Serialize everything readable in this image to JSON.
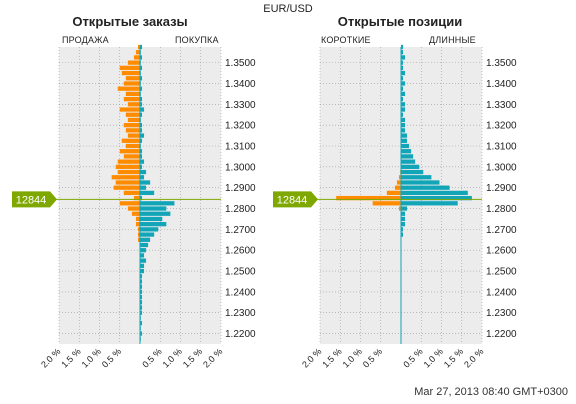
{
  "pair": "EUR/USD",
  "timestamp": "Mar 27, 2013 08:40 GMT+0300",
  "colors": {
    "orange": "#ff8c00",
    "teal": "#12a5b8",
    "price_line": "#7ea700",
    "grid_bg": "#ececec",
    "grid_line": "#9a9a9a"
  },
  "chart_data": [
    {
      "type": "bar",
      "title": "Открытые заказы",
      "left_label": "ПРОДАЖА",
      "right_label": "ПОКУПКА",
      "current_price": 1.2844,
      "current_price_label": "12844",
      "ylim": [
        1.215,
        1.3575
      ],
      "xlim_percent": [
        -2.0,
        2.0
      ],
      "yticks": [
        "1.3500",
        "1.3400",
        "1.3300",
        "1.3200",
        "1.3100",
        "1.3000",
        "1.2900",
        "1.2800",
        "1.2700",
        "1.2600",
        "1.2500",
        "1.2400",
        "1.2300",
        "1.2200"
      ],
      "xticks": [
        "2.0 %",
        "1.5 %",
        "1.0 %",
        "0.5 %",
        "0.5 %",
        "1.0 %",
        "1.5 %",
        "2.0 %"
      ],
      "bucket_size": 0.0025,
      "price_levels": [
        1.3575,
        1.355,
        1.3525,
        1.35,
        1.3475,
        1.345,
        1.3425,
        1.34,
        1.3375,
        1.335,
        1.3325,
        1.33,
        1.3275,
        1.325,
        1.3225,
        1.32,
        1.3175,
        1.315,
        1.3125,
        1.31,
        1.3075,
        1.305,
        1.3025,
        1.3,
        1.2975,
        1.295,
        1.2925,
        1.29,
        1.2875,
        1.285,
        1.2825,
        1.28,
        1.2775,
        1.275,
        1.2725,
        1.27,
        1.2675,
        1.265,
        1.2625,
        1.26,
        1.2575,
        1.255,
        1.2525,
        1.25,
        1.2475,
        1.245,
        1.2425,
        1.24,
        1.2375,
        1.235,
        1.2325,
        1.23,
        1.2275,
        1.225,
        1.2225,
        1.22,
        1.2175
      ],
      "series": [
        {
          "name": "ПРОДАЖА",
          "color": "orange",
          "values": [
            0.05,
            0.1,
            0.15,
            0.3,
            0.5,
            0.45,
            0.35,
            0.4,
            0.55,
            0.35,
            0.4,
            0.3,
            0.5,
            0.35,
            0.3,
            0.4,
            0.35,
            0.3,
            0.45,
            0.35,
            0.5,
            0.4,
            0.55,
            0.6,
            0.55,
            0.7,
            0.6,
            0.65,
            0.4,
            0.15,
            0.5,
            0.3,
            0.2,
            0.1,
            0.1,
            0.05,
            0.05,
            0.05,
            0,
            0,
            0,
            0,
            0,
            0,
            0,
            0,
            0,
            0,
            0,
            0,
            0,
            0,
            0,
            0,
            0,
            0,
            0
          ]
        },
        {
          "name": "ПОКУПКА",
          "color": "teal",
          "values": [
            0.05,
            0.02,
            0.05,
            0.02,
            0.05,
            0.02,
            0.05,
            0.02,
            0.05,
            0.02,
            0.05,
            0.05,
            0.1,
            0.05,
            0.02,
            0.05,
            0.05,
            0.1,
            0.05,
            0.02,
            0.05,
            0.05,
            0.1,
            0.05,
            0.15,
            0.1,
            0.25,
            0.15,
            0.35,
            0.05,
            0.85,
            0.65,
            0.75,
            0.55,
            0.65,
            0.45,
            0.35,
            0.25,
            0.2,
            0.15,
            0.1,
            0.15,
            0.1,
            0.1,
            0.05,
            0.05,
            0.05,
            0.05,
            0.05,
            0.05,
            0.05,
            0.05,
            0.02,
            0.05,
            0.02,
            0.05,
            0.02
          ]
        }
      ]
    },
    {
      "type": "bar",
      "title": "Открытые позиции",
      "left_label": "КОРОТКИЕ",
      "right_label": "ДЛИННЫЕ",
      "current_price": 1.2844,
      "current_price_label": "12844",
      "ylim": [
        1.215,
        1.3575
      ],
      "xlim_percent": [
        -2.0,
        2.0
      ],
      "yticks": [
        "1.3500",
        "1.3400",
        "1.3300",
        "1.3200",
        "1.3100",
        "1.3000",
        "1.2900",
        "1.2800",
        "1.2700",
        "1.2600",
        "1.2500",
        "1.2400",
        "1.2300",
        "1.2200"
      ],
      "xticks": [
        "2.0 %",
        "1.5 %",
        "1.0 %",
        "0.5 %",
        "0.5 %",
        "1.0 %",
        "1.5 %",
        "2.0 %"
      ],
      "bucket_size": 0.0025,
      "price_levels": [
        1.3575,
        1.355,
        1.3525,
        1.35,
        1.3475,
        1.345,
        1.3425,
        1.34,
        1.3375,
        1.335,
        1.3325,
        1.33,
        1.3275,
        1.325,
        1.3225,
        1.32,
        1.3175,
        1.315,
        1.3125,
        1.31,
        1.3075,
        1.305,
        1.3025,
        1.3,
        1.2975,
        1.295,
        1.2925,
        1.29,
        1.2875,
        1.285,
        1.2825,
        1.28,
        1.2775,
        1.275,
        1.2725,
        1.27,
        1.2675,
        1.265,
        1.2625,
        1.26,
        1.2575,
        1.255,
        1.2525,
        1.25,
        1.2475,
        1.245,
        1.2425,
        1.24,
        1.2375,
        1.235,
        1.2325,
        1.23,
        1.2275,
        1.225,
        1.2225,
        1.22,
        1.2175
      ],
      "series": [
        {
          "name": "КОРОТКИЕ",
          "color": "orange",
          "values": [
            0,
            0,
            0,
            0,
            0,
            0,
            0,
            0,
            0,
            0,
            0,
            0,
            0,
            0,
            0,
            0,
            0,
            0,
            0,
            0,
            0,
            0,
            0,
            0,
            0.02,
            0.05,
            0.1,
            0.15,
            0.35,
            1.6,
            0.7,
            0.05,
            0,
            0,
            0,
            0,
            0,
            0,
            0,
            0,
            0,
            0,
            0,
            0,
            0,
            0,
            0,
            0,
            0,
            0,
            0,
            0,
            0,
            0,
            0,
            0,
            0
          ]
        },
        {
          "name": "ДЛИННЫЕ",
          "color": "teal",
          "values": [
            0.05,
            0.05,
            0.1,
            0.05,
            0.05,
            0.1,
            0.05,
            0.1,
            0.05,
            0.1,
            0.05,
            0.1,
            0.1,
            0.05,
            0.1,
            0.1,
            0.1,
            0.15,
            0.15,
            0.2,
            0.25,
            0.3,
            0.35,
            0.45,
            0.55,
            0.75,
            0.95,
            1.2,
            1.65,
            1.75,
            1.4,
            0.15,
            0.1,
            0.1,
            0.1,
            0.05,
            0.05,
            0,
            0,
            0,
            0,
            0,
            0,
            0,
            0,
            0,
            0,
            0,
            0,
            0,
            0,
            0,
            0,
            0,
            0,
            0,
            0
          ]
        }
      ]
    }
  ]
}
